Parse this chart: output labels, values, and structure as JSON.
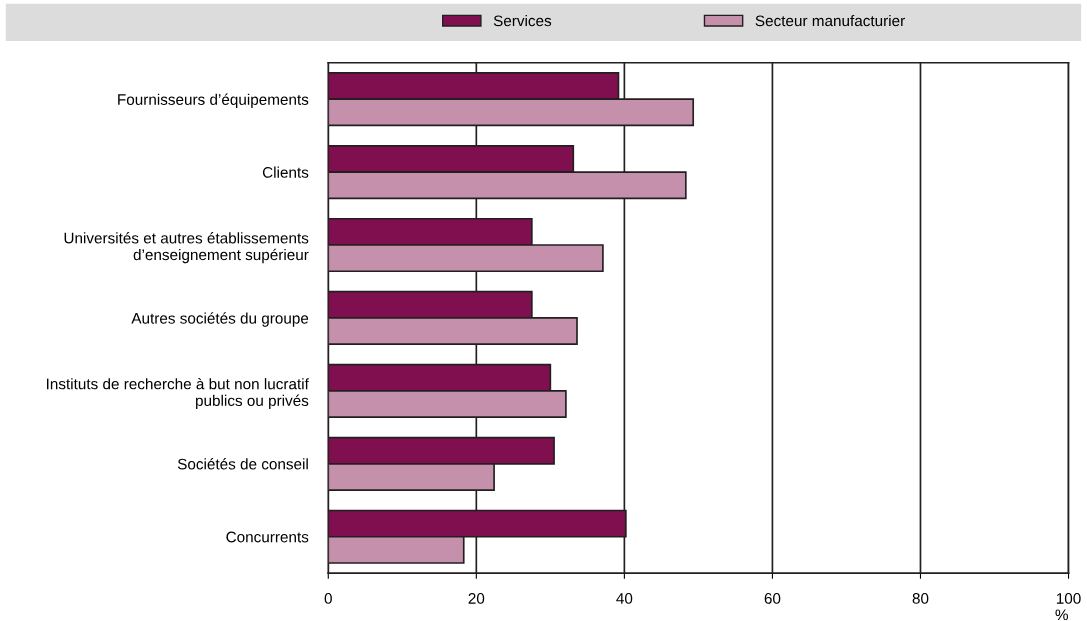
{
  "chart_data": {
    "type": "bar",
    "orientation": "horizontal",
    "xlabel": "%",
    "categories": [
      "Fournisseurs d’équipements",
      "Clients",
      "Universités et autres établissements\nd’enseignement supérieur",
      "Autres sociétés du groupe",
      "Instituts de recherche à but non lucratif\npublics ou privés",
      "Sociétés de conseil",
      "Concurrents"
    ],
    "series": [
      {
        "name": "Services",
        "color": "#800f50",
        "values": [
          39.2,
          33.1,
          27.5,
          27.5,
          30.0,
          30.5,
          40.2
        ]
      },
      {
        "name": "Secteur manufacturier",
        "color": "#c490ab",
        "values": [
          49.3,
          48.3,
          37.1,
          33.6,
          32.1,
          22.4,
          18.3
        ]
      }
    ],
    "xlim": [
      0,
      100
    ],
    "xticks": [
      0,
      20,
      40,
      60,
      80,
      100
    ],
    "grid": "x",
    "legend": "top"
  }
}
